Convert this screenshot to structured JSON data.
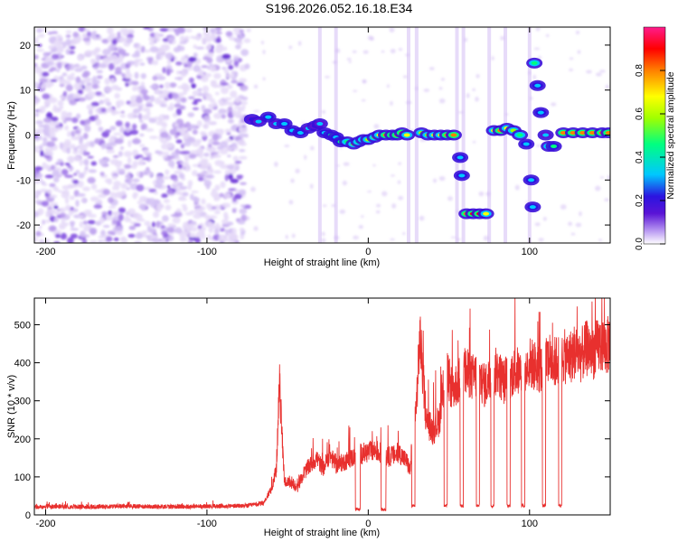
{
  "title": "S196.2026.052.16.18.E34",
  "colors": {
    "snr_line": "#e8302e",
    "axis": "#000000",
    "background": "#ffffff",
    "colormap": [
      "#ffffff",
      "#d9c6f5",
      "#a678ec",
      "#6a1fd8",
      "#2b14e0",
      "#00c8ff",
      "#00ff80",
      "#ffff00",
      "#ff8000",
      "#ff0000",
      "#ff1b8d"
    ]
  },
  "chart_data": [
    {
      "type": "heatmap",
      "name": "spectrogram",
      "xlabel": "Height of straight line (km)",
      "ylabel": "Frequency (Hz)",
      "xlim": [
        -207,
        150
      ],
      "ylim": [
        -24,
        24
      ],
      "xticks": [
        -200,
        -100,
        0,
        100
      ],
      "xtick_labels": [
        "-200",
        "-100",
        "0",
        "100"
      ],
      "yticks": [
        20,
        10,
        0,
        -10,
        -20
      ],
      "ytick_labels": [
        "20",
        "10",
        "0",
        "-10",
        "-20"
      ],
      "colorbar": {
        "label": "Normalized spectral amplitude",
        "range": [
          0,
          1
        ],
        "ticks": [
          0.0,
          0.2,
          0.4,
          0.6,
          0.8
        ],
        "tick_labels": [
          "0.0",
          "0.2",
          "0.4",
          "0.6",
          "0.8"
        ]
      },
      "track": [
        {
          "x": -72,
          "y": 3.5,
          "a": 0.3
        },
        {
          "x": -68,
          "y": 3.0,
          "a": 0.35
        },
        {
          "x": -62,
          "y": 4.0,
          "a": 0.4
        },
        {
          "x": -57,
          "y": 2.5,
          "a": 0.35
        },
        {
          "x": -52,
          "y": 2.5,
          "a": 0.45
        },
        {
          "x": -47,
          "y": 1.0,
          "a": 0.4
        },
        {
          "x": -42,
          "y": 0.5,
          "a": 0.4
        },
        {
          "x": -37,
          "y": 1.5,
          "a": 0.35
        },
        {
          "x": -33,
          "y": 2.0,
          "a": 0.3
        },
        {
          "x": -30,
          "y": 2.5,
          "a": 0.35
        },
        {
          "x": -27,
          "y": 0.5,
          "a": 0.45
        },
        {
          "x": -23,
          "y": 0.0,
          "a": 0.5
        },
        {
          "x": -20,
          "y": -0.5,
          "a": 0.45
        },
        {
          "x": -17,
          "y": -1.5,
          "a": 0.5
        },
        {
          "x": -13,
          "y": -1.5,
          "a": 0.55
        },
        {
          "x": -9,
          "y": -2.0,
          "a": 0.6
        },
        {
          "x": -6,
          "y": -1.5,
          "a": 0.55
        },
        {
          "x": -3,
          "y": -1.0,
          "a": 0.55
        },
        {
          "x": 0,
          "y": -1.0,
          "a": 0.6
        },
        {
          "x": 4,
          "y": -0.5,
          "a": 0.65
        },
        {
          "x": 7,
          "y": 0.0,
          "a": 0.7
        },
        {
          "x": 11,
          "y": 0.0,
          "a": 0.8
        },
        {
          "x": 15,
          "y": 0.0,
          "a": 0.85
        },
        {
          "x": 18,
          "y": 0.0,
          "a": 0.85
        },
        {
          "x": 21,
          "y": 0.5,
          "a": 0.85
        },
        {
          "x": 24,
          "y": 0.0,
          "a": 0.7
        },
        {
          "x": 33,
          "y": 0.5,
          "a": 0.6
        },
        {
          "x": 37,
          "y": 0.0,
          "a": 0.65
        },
        {
          "x": 41,
          "y": 0.0,
          "a": 0.7
        },
        {
          "x": 45,
          "y": 0.0,
          "a": 0.75
        },
        {
          "x": 49,
          "y": 0.0,
          "a": 0.85
        },
        {
          "x": 53,
          "y": 0.0,
          "a": 0.85
        },
        {
          "x": 57,
          "y": -5.0,
          "a": 0.4
        },
        {
          "x": 58,
          "y": -9.0,
          "a": 0.4
        },
        {
          "x": 61,
          "y": -17.5,
          "a": 0.85
        },
        {
          "x": 65,
          "y": -17.5,
          "a": 0.9
        },
        {
          "x": 69,
          "y": -17.5,
          "a": 0.9
        },
        {
          "x": 73,
          "y": -17.5,
          "a": 0.75
        },
        {
          "x": 78,
          "y": 1.0,
          "a": 0.75
        },
        {
          "x": 82,
          "y": 1.0,
          "a": 0.85
        },
        {
          "x": 86,
          "y": 1.5,
          "a": 0.7
        },
        {
          "x": 90,
          "y": 1.0,
          "a": 0.6
        },
        {
          "x": 94,
          "y": 0.0,
          "a": 0.55
        },
        {
          "x": 98,
          "y": -2.0,
          "a": 0.4
        },
        {
          "x": 101,
          "y": -10.0,
          "a": 0.4
        },
        {
          "x": 102,
          "y": -16.0,
          "a": 0.45
        },
        {
          "x": 103,
          "y": 16.0,
          "a": 0.55
        },
        {
          "x": 105,
          "y": 11.0,
          "a": 0.45
        },
        {
          "x": 107,
          "y": 5.0,
          "a": 0.4
        },
        {
          "x": 110,
          "y": 0.0,
          "a": 0.35
        },
        {
          "x": 112,
          "y": -2.5,
          "a": 0.55
        },
        {
          "x": 115,
          "y": -2.5,
          "a": 0.5
        },
        {
          "x": 121,
          "y": 0.5,
          "a": 0.8
        },
        {
          "x": 127,
          "y": 0.5,
          "a": 0.85
        },
        {
          "x": 133,
          "y": 0.5,
          "a": 0.85
        },
        {
          "x": 139,
          "y": 0.5,
          "a": 0.85
        },
        {
          "x": 145,
          "y": 0.5,
          "a": 0.85
        },
        {
          "x": 149,
          "y": 0.5,
          "a": 0.8
        }
      ]
    },
    {
      "type": "line",
      "name": "snr",
      "xlabel": "Height of straight line (km)",
      "ylabel": "SNR (10 * v/v)",
      "xlim": [
        -207,
        150
      ],
      "ylim": [
        0,
        570
      ],
      "xticks": [
        -200,
        -100,
        0,
        100
      ],
      "xtick_labels": [
        "-200",
        "-100",
        "0",
        "100"
      ],
      "yticks": [
        0,
        100,
        200,
        300,
        400,
        500
      ],
      "ytick_labels": [
        "0",
        "100",
        "200",
        "300",
        "400",
        "500"
      ],
      "series": [
        {
          "name": "SNR",
          "x": [
            -207,
            -190,
            -170,
            -150,
            -130,
            -110,
            -90,
            -75,
            -65,
            -60,
            -57,
            -55,
            -52,
            -48,
            -44,
            -40,
            -36,
            -32,
            -28,
            -24,
            -20,
            -15,
            -10,
            -5,
            0,
            5,
            10,
            15,
            20,
            24,
            26,
            28,
            30,
            32,
            36,
            40,
            44,
            46,
            48,
            52,
            56,
            60,
            64,
            68,
            72,
            76,
            80,
            84,
            88,
            92,
            96,
            100,
            104,
            108,
            112,
            116,
            120,
            124,
            128,
            132,
            136,
            140,
            144,
            148,
            150
          ],
          "y": [
            20,
            22,
            21,
            23,
            22,
            22,
            23,
            24,
            30,
            70,
            120,
            345,
            90,
            80,
            70,
            110,
            130,
            150,
            120,
            160,
            130,
            140,
            150,
            160,
            165,
            170,
            150,
            155,
            160,
            140,
            115,
            240,
            300,
            470,
            250,
            220,
            250,
            300,
            380,
            330,
            350,
            380,
            360,
            370,
            340,
            360,
            380,
            350,
            370,
            380,
            360,
            400,
            390,
            380,
            410,
            400,
            420,
            410,
            430,
            420,
            440,
            430,
            450,
            440,
            460
          ],
          "dropouts": [
            {
              "x0": -8,
              "x1": -5,
              "y": 10
            },
            {
              "x0": 8,
              "x1": 11,
              "y": 10
            },
            {
              "x0": 27,
              "x1": 29,
              "y": 20
            },
            {
              "x0": 47,
              "x1": 49,
              "y": 20
            },
            {
              "x0": 57,
              "x1": 59,
              "y": 20
            },
            {
              "x0": 67,
              "x1": 69,
              "y": 20
            },
            {
              "x0": 76,
              "x1": 78,
              "y": 20
            },
            {
              "x0": 86,
              "x1": 88,
              "y": 20
            },
            {
              "x0": 95,
              "x1": 97,
              "y": 20
            },
            {
              "x0": 108,
              "x1": 110,
              "y": 20
            },
            {
              "x0": 118,
              "x1": 120,
              "y": 20
            }
          ]
        }
      ]
    }
  ]
}
